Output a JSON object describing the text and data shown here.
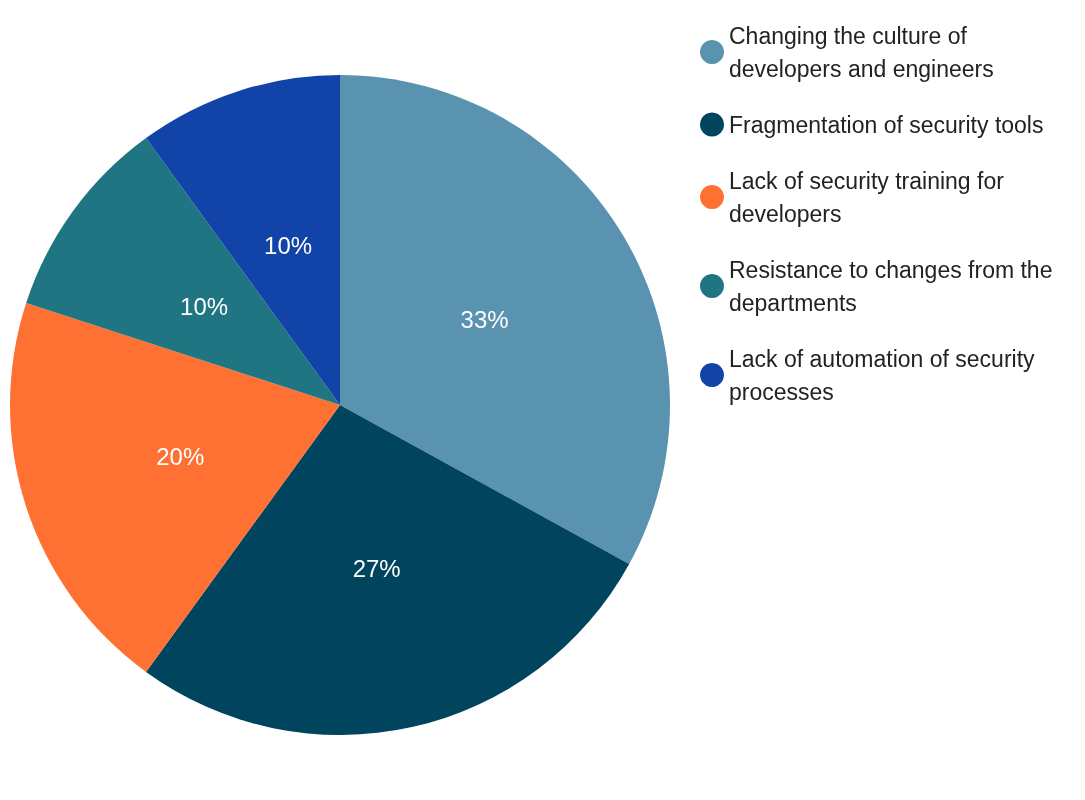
{
  "chart_data": {
    "type": "pie",
    "categories": [
      "Changing the culture of developers and engineers",
      "Fragmentation of security tools",
      "Lack of security training for developers",
      "Resistance to changes from the departments",
      "Lack of automation of security processes"
    ],
    "values": [
      33,
      27,
      20,
      10,
      10
    ],
    "value_labels": [
      "33%",
      "27%",
      "20%",
      "10%",
      "10%"
    ],
    "colors": [
      "#5a93b0",
      "#00445e",
      "#ff7033",
      "#1f7582",
      "#1243a8"
    ],
    "legend": "top right"
  }
}
